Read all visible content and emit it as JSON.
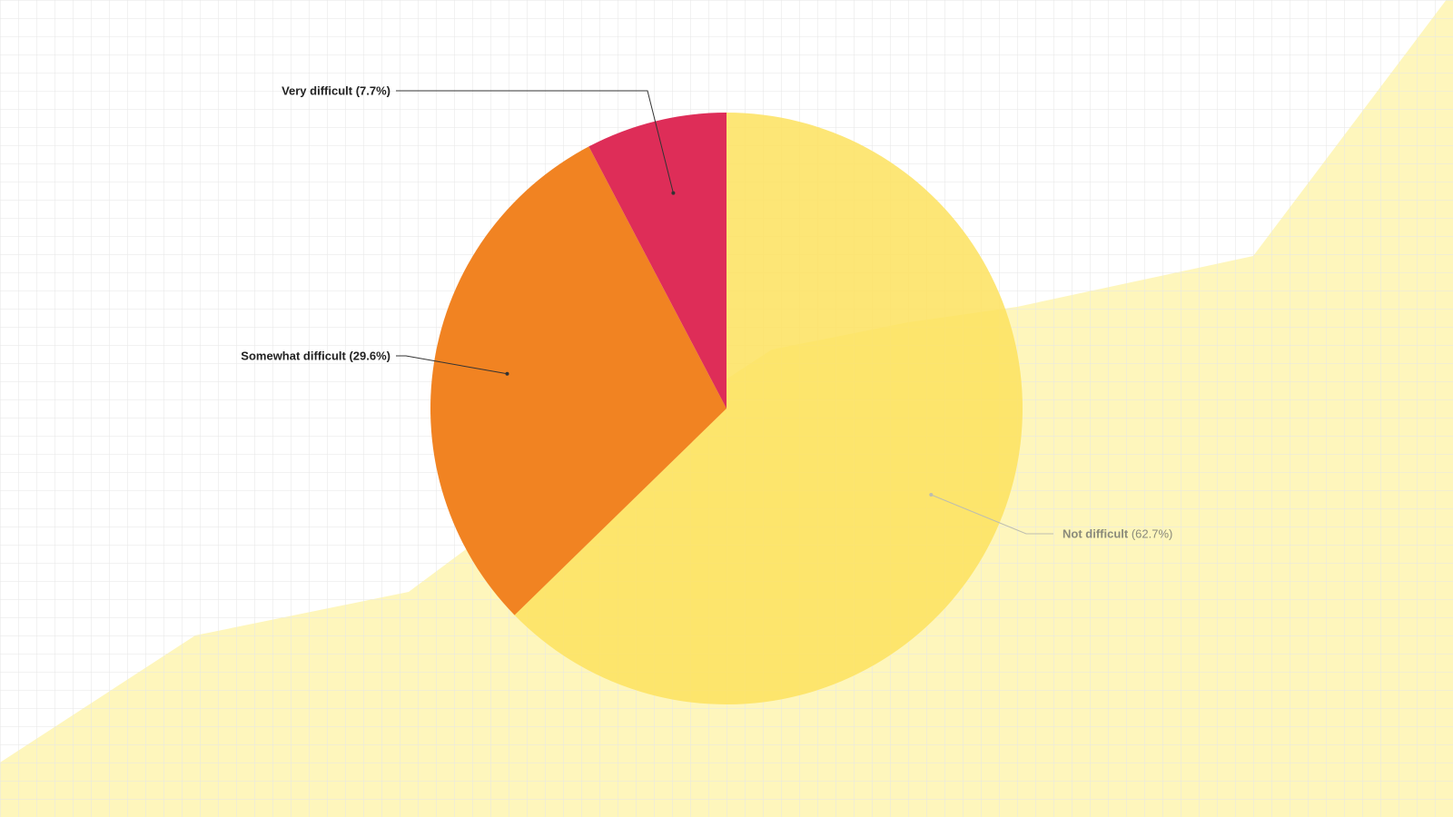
{
  "chart_data": {
    "type": "pie",
    "title": "",
    "slices": [
      {
        "label": "Not difficult",
        "value": 62.7,
        "display": "(62.7%)",
        "color": "#FDE25E",
        "fill_opacity": 0.85,
        "label_color": "#8a8a7a",
        "label_side": "right"
      },
      {
        "label": "Somewhat difficult",
        "value": 29.6,
        "display": "(29.6%)",
        "color": "#F18322",
        "fill_opacity": 1,
        "label_color": "#222222",
        "label_side": "left"
      },
      {
        "label": "Very difficult",
        "value": 7.7,
        "display": "(7.7%)",
        "color": "#DE2D58",
        "fill_opacity": 1,
        "label_color": "#222222",
        "label_side": "left"
      }
    ],
    "start_angle": "12 o'clock",
    "direction": "clockwise",
    "legend": "none"
  },
  "theme": {
    "background": "#ffffff",
    "grid_color": "#e6e6e6",
    "backdrop_area_color": "#FDF3A6"
  }
}
